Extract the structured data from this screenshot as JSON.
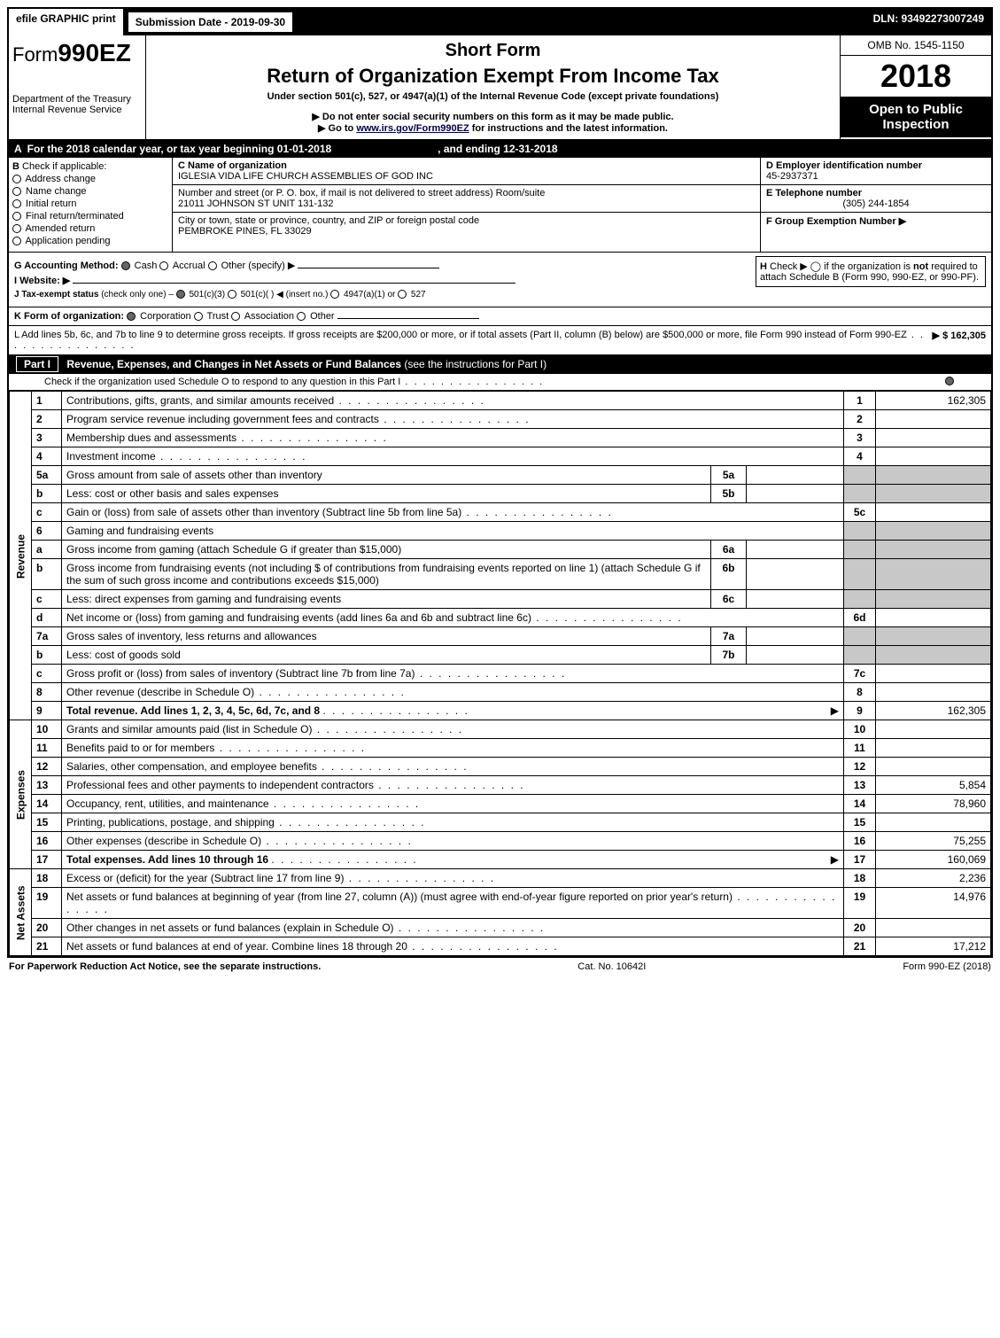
{
  "topbar": {
    "efile": "efile GRAPHIC print",
    "submission_label": "Submission Date - 2019-09-30",
    "dln": "DLN: 93492273007249"
  },
  "header": {
    "form_prefix": "Form",
    "form_number": "990EZ",
    "dept": "Department of the Treasury",
    "irs": "Internal Revenue Service",
    "short_form": "Short Form",
    "title": "Return of Organization Exempt From Income Tax",
    "subtitle": "Under section 501(c), 527, or 4947(a)(1) of the Internal Revenue Code (except private foundations)",
    "note1": "▶ Do not enter social security numbers on this form as it may be made public.",
    "note2_pre": "▶ Go to ",
    "note2_link": "www.irs.gov/Form990EZ",
    "note2_post": " for instructions and the latest information.",
    "omb": "OMB No. 1545-1150",
    "year": "2018",
    "open": "Open to Public Inspection"
  },
  "row_a": {
    "label": "A",
    "text": "For the 2018 calendar year, or tax year beginning 01-01-2018",
    "ending": ", and ending 12-31-2018"
  },
  "col_b": {
    "label": "B",
    "heading": "Check if applicable:",
    "items": [
      "Address change",
      "Name change",
      "Initial return",
      "Final return/terminated",
      "Amended return",
      "Application pending"
    ]
  },
  "col_c": {
    "c_label": "C Name of organization",
    "name": "IGLESIA VIDA LIFE CHURCH ASSEMBLIES OF GOD INC",
    "street_label": "Number and street (or P. O. box, if mail is not delivered to street address)   Room/suite",
    "street": "21011 JOHNSON ST UNIT 131-132",
    "city_label": "City or town, state or province, country, and ZIP or foreign postal code",
    "city": "PEMBROKE PINES, FL  33029"
  },
  "col_def": {
    "d_label": "D Employer identification number",
    "ein": "45-2937371",
    "e_label": "E Telephone number",
    "phone": "(305) 244-1854",
    "f_label": "F Group Exemption Number  ▶"
  },
  "hbox": {
    "h_label": "H",
    "text1": "Check ▶   ◯  if the organization is ",
    "not": "not",
    "text2": " required to attach Schedule B (Form 990, 990-EZ, or 990-PF)."
  },
  "g": {
    "label": "G Accounting Method:",
    "opts": [
      "Cash",
      "Accrual",
      "Other (specify) ▶"
    ]
  },
  "i": {
    "label": "I Website: ▶"
  },
  "j": {
    "label": "J Tax-exempt status",
    "note": "(check only one) – ",
    "opts": [
      "501(c)(3)",
      "501(c)(  ) ◀ (insert no.)",
      "4947(a)(1) or",
      "527"
    ]
  },
  "k": {
    "label": "K Form of organization:",
    "opts": [
      "Corporation",
      "Trust",
      "Association",
      "Other"
    ]
  },
  "l": {
    "text": "L Add lines 5b, 6c, and 7b to line 9 to determine gross receipts. If gross receipts are $200,000 or more, or if total assets (Part II, column (B) below) are $500,000 or more, file Form 990 instead of Form 990-EZ",
    "amount": "▶ $ 162,305"
  },
  "part1": {
    "label": "Part I",
    "title": "Revenue, Expenses, and Changes in Net Assets or Fund Balances",
    "note": "(see the instructions for Part I)",
    "sub": "Check if the organization used Schedule O to respond to any question in this Part I"
  },
  "vlabels": {
    "rev": "Revenue",
    "exp": "Expenses",
    "na": "Net Assets"
  },
  "lines": [
    {
      "n": "1",
      "d": "Contributions, gifts, grants, and similar amounts received",
      "r": "1",
      "a": "162,305"
    },
    {
      "n": "2",
      "d": "Program service revenue including government fees and contracts",
      "r": "2",
      "a": ""
    },
    {
      "n": "3",
      "d": "Membership dues and assessments",
      "r": "3",
      "a": ""
    },
    {
      "n": "4",
      "d": "Investment income",
      "r": "4",
      "a": ""
    },
    {
      "n": "5a",
      "d": "Gross amount from sale of assets other than inventory",
      "sn": "5a",
      "sv": "",
      "shade": true
    },
    {
      "n": "b",
      "d": "Less: cost or other basis and sales expenses",
      "sn": "5b",
      "sv": "",
      "shade": true
    },
    {
      "n": "c",
      "d": "Gain or (loss) from sale of assets other than inventory (Subtract line 5b from line 5a)",
      "r": "5c",
      "a": ""
    },
    {
      "n": "6",
      "d": "Gaming and fundraising events",
      "shade_all": true
    },
    {
      "n": "a",
      "d": "Gross income from gaming (attach Schedule G if greater than $15,000)",
      "sn": "6a",
      "sv": "",
      "shade": true
    },
    {
      "n": "b",
      "d": "Gross income from fundraising events (not including $                     of contributions from fundraising events reported on line 1) (attach Schedule G if the sum of such gross income and contributions exceeds $15,000)",
      "sn": "6b",
      "sv": "",
      "shade": true
    },
    {
      "n": "c",
      "d": "Less: direct expenses from gaming and fundraising events",
      "sn": "6c",
      "sv": "",
      "shade": true
    },
    {
      "n": "d",
      "d": "Net income or (loss) from gaming and fundraising events (add lines 6a and 6b and subtract line 6c)",
      "r": "6d",
      "a": ""
    },
    {
      "n": "7a",
      "d": "Gross sales of inventory, less returns and allowances",
      "sn": "7a",
      "sv": "",
      "shade": true
    },
    {
      "n": "b",
      "d": "Less: cost of goods sold",
      "sn": "7b",
      "sv": "",
      "shade": true
    },
    {
      "n": "c",
      "d": "Gross profit or (loss) from sales of inventory (Subtract line 7b from line 7a)",
      "r": "7c",
      "a": ""
    },
    {
      "n": "8",
      "d": "Other revenue (describe in Schedule O)",
      "r": "8",
      "a": ""
    },
    {
      "n": "9",
      "d": "Total revenue. Add lines 1, 2, 3, 4, 5c, 6d, 7c, and 8",
      "r": "9",
      "a": "162,305",
      "bold": true,
      "arrow": true
    },
    {
      "n": "10",
      "d": "Grants and similar amounts paid (list in Schedule O)",
      "r": "10",
      "a": ""
    },
    {
      "n": "11",
      "d": "Benefits paid to or for members",
      "r": "11",
      "a": ""
    },
    {
      "n": "12",
      "d": "Salaries, other compensation, and employee benefits",
      "r": "12",
      "a": ""
    },
    {
      "n": "13",
      "d": "Professional fees and other payments to independent contractors",
      "r": "13",
      "a": "5,854"
    },
    {
      "n": "14",
      "d": "Occupancy, rent, utilities, and maintenance",
      "r": "14",
      "a": "78,960"
    },
    {
      "n": "15",
      "d": "Printing, publications, postage, and shipping",
      "r": "15",
      "a": ""
    },
    {
      "n": "16",
      "d": "Other expenses (describe in Schedule O)",
      "r": "16",
      "a": "75,255"
    },
    {
      "n": "17",
      "d": "Total expenses. Add lines 10 through 16",
      "r": "17",
      "a": "160,069",
      "bold": true,
      "arrow": true
    },
    {
      "n": "18",
      "d": "Excess or (deficit) for the year (Subtract line 17 from line 9)",
      "r": "18",
      "a": "2,236"
    },
    {
      "n": "19",
      "d": "Net assets or fund balances at beginning of year (from line 27, column (A)) (must agree with end-of-year figure reported on prior year's return)",
      "r": "19",
      "a": "14,976"
    },
    {
      "n": "20",
      "d": "Other changes in net assets or fund balances (explain in Schedule O)",
      "r": "20",
      "a": ""
    },
    {
      "n": "21",
      "d": "Net assets or fund balances at end of year. Combine lines 18 through 20",
      "r": "21",
      "a": "17,212"
    }
  ],
  "footer": {
    "left": "For Paperwork Reduction Act Notice, see the separate instructions.",
    "mid": "Cat. No. 10642I",
    "right": "Form 990-EZ (2018)"
  }
}
